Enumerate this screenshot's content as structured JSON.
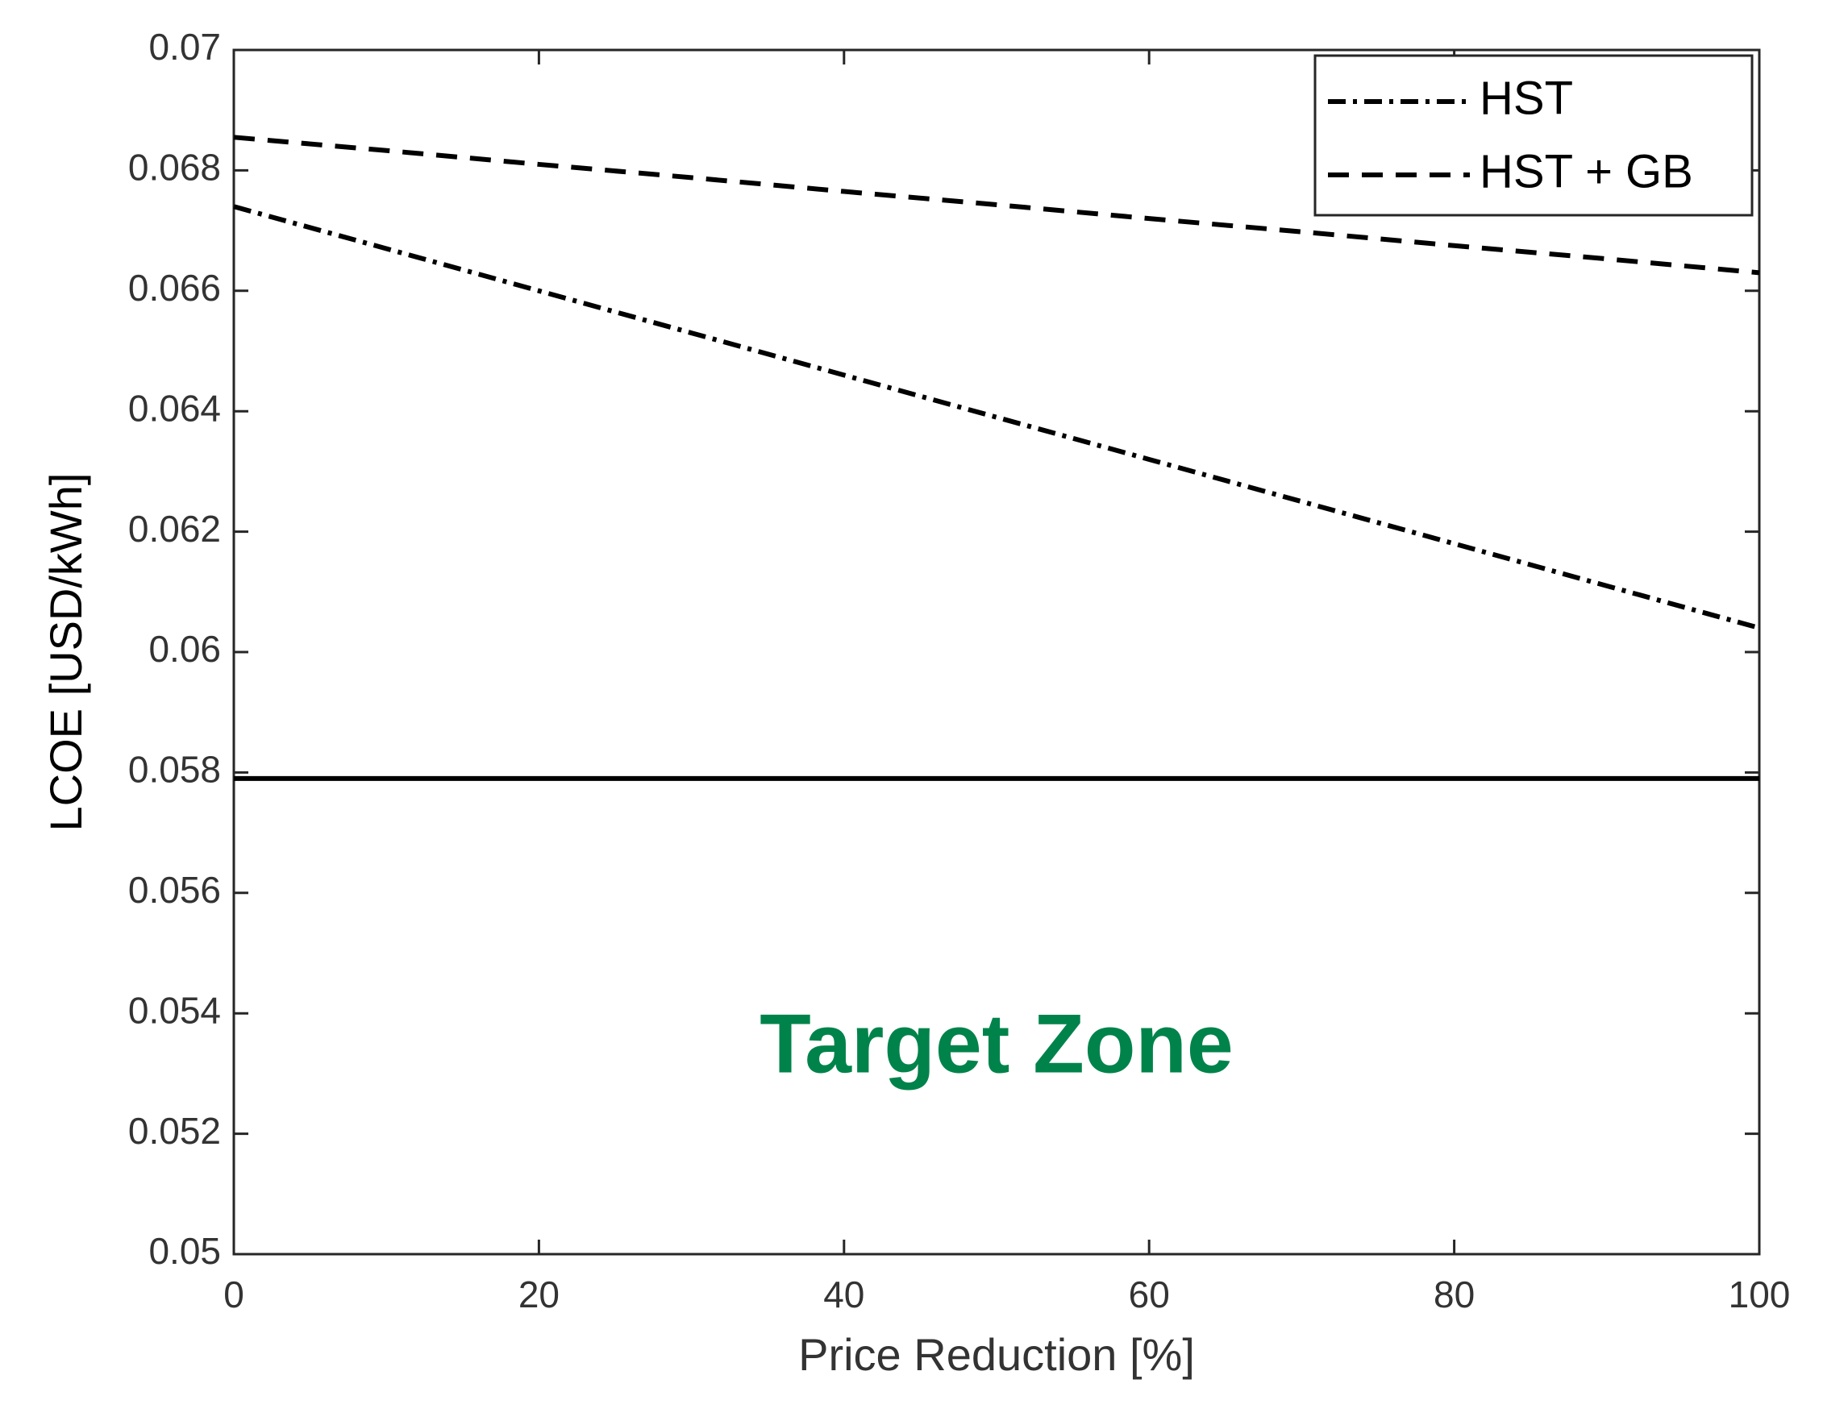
{
  "chart_data": {
    "type": "line",
    "xlabel": "Price Reduction [%]",
    "ylabel": "LCOE [USD/kWh]",
    "x": [
      0,
      10,
      20,
      30,
      40,
      50,
      60,
      70,
      80,
      90,
      100
    ],
    "series": [
      {
        "name": "HST",
        "color": "#000000",
        "linestyle": "dashdot",
        "values": [
          0.0674,
          0.0667,
          0.066,
          0.0653,
          0.0646,
          0.0639,
          0.0632,
          0.0625,
          0.0618,
          0.0611,
          0.0604
        ]
      },
      {
        "name": "HST + GB",
        "color": "#000000",
        "linestyle": "dashed",
        "values": [
          0.06855,
          0.06833,
          0.0681,
          0.06788,
          0.06765,
          0.06743,
          0.0672,
          0.06698,
          0.06675,
          0.06653,
          0.0663
        ]
      }
    ],
    "hlines": [
      {
        "value": 0.0579,
        "color": "#000000"
      }
    ],
    "annotations": [
      {
        "text": "Target Zone",
        "color": "#00834a"
      }
    ],
    "xlim": [
      0,
      100
    ],
    "xticks": [
      0,
      20,
      40,
      60,
      80,
      100
    ],
    "ylim": [
      0.05,
      0.07
    ],
    "yticks": [
      0.05,
      0.052,
      0.054,
      0.056,
      0.058,
      0.06,
      0.062,
      0.064,
      0.066,
      0.068,
      0.07
    ],
    "legend": "upper right"
  }
}
